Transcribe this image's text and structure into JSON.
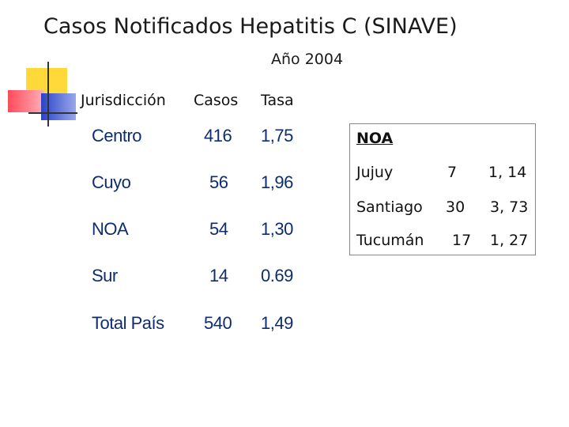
{
  "title": "Casos Notificados Hepatitis C (SINAVE)",
  "subtitle": "Año 2004",
  "table": {
    "headers": [
      "Jurisdicción",
      "Casos",
      "Tasa"
    ],
    "rows": [
      [
        "Centro",
        "416",
        "1,75"
      ],
      [
        "Cuyo",
        "56",
        "1,96"
      ],
      [
        "NOA",
        "54",
        "1,30"
      ],
      [
        "Sur",
        "14",
        "0.69"
      ],
      [
        "Total País",
        "540",
        "1,49"
      ]
    ]
  },
  "noa": {
    "title": "NOA",
    "rows": [
      [
        "Jujuy",
        "7",
        "1, 14"
      ],
      [
        "Santiago",
        "30",
        "3, 73"
      ],
      [
        "Tucumán",
        "17",
        "1, 27"
      ]
    ]
  },
  "colors": {
    "table_text": "#0d2d6e",
    "logo_yellow": "#ffd83a",
    "logo_red": "#ff4a5a",
    "logo_blue": "#2a44c8"
  }
}
